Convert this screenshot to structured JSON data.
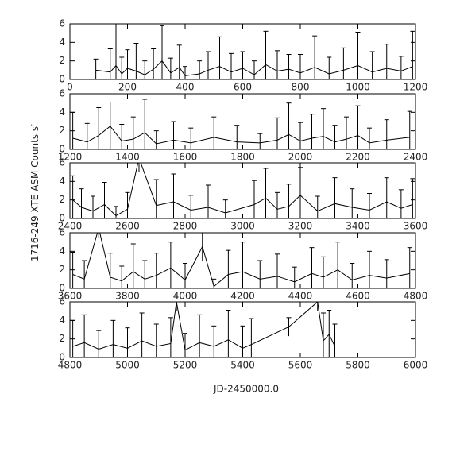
{
  "chart_data": [
    {
      "type": "line",
      "xlim": [
        0,
        1200
      ],
      "ylim": [
        0,
        6
      ],
      "yticks": [
        0,
        2,
        4,
        6
      ],
      "xticks": [
        0,
        200,
        400,
        600,
        800,
        1000,
        1200
      ],
      "color": "#000000",
      "x": [
        90,
        140,
        160,
        180,
        200,
        230,
        260,
        290,
        320,
        350,
        380,
        400,
        450,
        480,
        520,
        560,
        600,
        640,
        680,
        720,
        760,
        800,
        850,
        900,
        950,
        1000,
        1050,
        1100,
        1150,
        1190
      ],
      "series": [
        {
          "values": [
            1.0,
            0.8,
            1.5,
            0.6,
            1.2,
            0.9,
            0.5,
            1.1,
            2.0,
            0.7,
            1.3,
            0.4,
            0.6,
            1.0,
            1.4,
            0.8,
            1.2,
            0.5,
            1.6,
            0.9,
            1.1,
            0.7,
            1.3,
            0.6,
            1.0,
            1.5,
            0.8,
            1.2,
            0.9,
            1.4
          ],
          "errors": [
            1.2,
            2.5,
            4.5,
            1.8,
            2.0,
            3.0,
            1.5,
            2.2,
            3.8,
            1.6,
            2.4,
            1.0,
            1.4,
            2.0,
            3.2,
            2.0,
            1.8,
            1.5,
            3.6,
            2.2,
            1.6,
            2.0,
            3.4,
            1.8,
            2.4,
            3.6,
            2.2,
            2.6,
            1.6,
            3.8
          ]
        }
      ]
    },
    {
      "type": "line",
      "xlim": [
        1200,
        2400
      ],
      "ylim": [
        0,
        6
      ],
      "yticks": [
        0,
        2,
        4,
        6
      ],
      "xticks": [
        1200,
        1400,
        1600,
        1800,
        2000,
        2200,
        2400
      ],
      "color": "#000000",
      "x": [
        1210,
        1260,
        1300,
        1340,
        1380,
        1420,
        1460,
        1500,
        1560,
        1620,
        1700,
        1780,
        1860,
        1920,
        1960,
        2000,
        2040,
        2080,
        2120,
        2160,
        2200,
        2240,
        2300,
        2380
      ],
      "series": [
        {
          "values": [
            1.2,
            0.8,
            1.5,
            2.5,
            0.9,
            1.1,
            1.8,
            0.6,
            1.0,
            0.7,
            1.3,
            0.8,
            0.7,
            1.0,
            1.6,
            0.9,
            1.2,
            1.4,
            0.8,
            1.1,
            1.5,
            0.7,
            1.0,
            1.3
          ],
          "errors": [
            2.8,
            2.0,
            3.0,
            2.6,
            1.8,
            2.4,
            3.6,
            1.4,
            2.0,
            1.6,
            2.2,
            1.8,
            1.0,
            2.4,
            3.4,
            2.0,
            2.6,
            3.0,
            1.8,
            2.4,
            3.2,
            1.6,
            2.2,
            2.8
          ]
        }
      ]
    },
    {
      "type": "line",
      "xlim": [
        2400,
        3600
      ],
      "ylim": [
        0,
        6
      ],
      "yticks": [
        0,
        2,
        4,
        6
      ],
      "xticks": [
        2400,
        2600,
        2800,
        3000,
        3200,
        3400,
        3600
      ],
      "color": "#000000",
      "x": [
        2410,
        2440,
        2480,
        2520,
        2560,
        2600,
        2640,
        2700,
        2760,
        2820,
        2880,
        2940,
        3040,
        3080,
        3120,
        3160,
        3200,
        3260,
        3320,
        3380,
        3440,
        3500,
        3550,
        3590
      ],
      "series": [
        {
          "values": [
            2.0,
            1.2,
            0.8,
            1.5,
            0.3,
            1.0,
            6.5,
            1.4,
            1.8,
            0.9,
            1.2,
            0.6,
            1.5,
            2.2,
            1.0,
            1.3,
            2.5,
            0.8,
            1.6,
            1.2,
            0.9,
            1.8,
            1.1,
            1.5
          ],
          "errors": [
            2.6,
            2.0,
            1.6,
            2.4,
            1.0,
            1.8,
            1.5,
            2.8,
            3.0,
            1.6,
            2.4,
            1.4,
            2.6,
            3.2,
            1.8,
            2.4,
            3.0,
            1.6,
            2.8,
            2.0,
            1.8,
            2.6,
            2.0,
            2.8
          ]
        }
      ]
    },
    {
      "type": "line",
      "xlim": [
        3600,
        4800
      ],
      "ylim": [
        0,
        6
      ],
      "yticks": [
        0,
        2,
        4,
        6
      ],
      "xticks": [
        3600,
        3800,
        4000,
        4200,
        4400,
        4600,
        4800
      ],
      "color": "#000000",
      "x": [
        3610,
        3650,
        3700,
        3740,
        3780,
        3820,
        3860,
        3900,
        3950,
        4000,
        4060,
        4100,
        4150,
        4200,
        4260,
        4320,
        4380,
        4440,
        4480,
        4530,
        4580,
        4640,
        4700,
        4780
      ],
      "series": [
        {
          "values": [
            1.5,
            1.0,
            6.5,
            1.2,
            0.8,
            1.8,
            1.0,
            1.4,
            2.2,
            0.9,
            4.5,
            0.2,
            1.5,
            1.8,
            1.0,
            1.3,
            0.7,
            1.6,
            1.2,
            2.0,
            0.9,
            1.4,
            1.1,
            1.6
          ],
          "errors": [
            2.4,
            2.0,
            1.0,
            2.6,
            1.6,
            3.0,
            2.0,
            2.4,
            2.8,
            1.8,
            1.5,
            0.8,
            2.6,
            3.2,
            2.0,
            2.4,
            1.6,
            2.8,
            2.2,
            3.0,
            1.8,
            2.6,
            2.0,
            2.8
          ]
        }
      ]
    },
    {
      "type": "line",
      "xlim": [
        4800,
        6000
      ],
      "ylim": [
        0,
        6
      ],
      "yticks": [
        0,
        2,
        4,
        6
      ],
      "xticks": [
        4800,
        5000,
        5200,
        5400,
        5600,
        5800,
        6000
      ],
      "color": "#000000",
      "x": [
        4810,
        4850,
        4900,
        4950,
        5000,
        5050,
        5100,
        5150,
        5170,
        5200,
        5250,
        5300,
        5350,
        5400,
        5430,
        5560,
        5660,
        5680,
        5700,
        5720
      ],
      "series": [
        {
          "values": [
            1.2,
            1.6,
            0.9,
            1.4,
            1.0,
            1.8,
            1.2,
            1.5,
            6.0,
            0.8,
            1.6,
            1.2,
            1.9,
            1.0,
            1.4,
            3.3,
            6.0,
            1.8,
            2.5,
            1.2
          ],
          "errors": [
            2.8,
            3.0,
            2.0,
            2.6,
            2.2,
            3.0,
            2.4,
            2.8,
            1.0,
            1.8,
            3.0,
            2.2,
            3.2,
            2.4,
            2.8,
            1.0,
            1.0,
            3.0,
            2.6,
            2.4
          ]
        }
      ],
      "xlabel": "JD-2450000.0",
      "ylabel": "1716-249 XTE ASM Counts s",
      "ylabel_exponent": "-1"
    }
  ]
}
